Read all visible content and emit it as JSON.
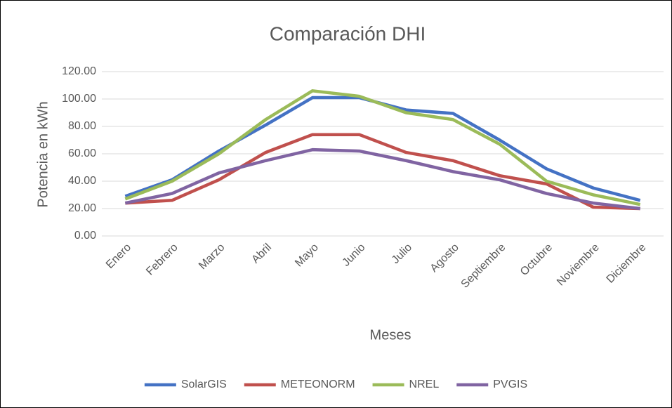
{
  "chart_data": {
    "type": "line",
    "title": "Comparación DHI",
    "xlabel": "Meses",
    "ylabel": "Potencia en kWh",
    "categories": [
      "Enero",
      "Febrero",
      "Marzo",
      "Abril",
      "Mayo",
      "Junio",
      "Julio",
      "Agosto",
      "Septiembre",
      "Octubre",
      "Noviembre",
      "Diciembre"
    ],
    "series": [
      {
        "name": "SolarGIS",
        "color": "#4472c4",
        "values": [
          29,
          41,
          62,
          81,
          101,
          101,
          92,
          89.5,
          70,
          49,
          35,
          26
        ]
      },
      {
        "name": "METEONORM",
        "color": "#c0504d",
        "values": [
          24,
          26,
          41,
          61,
          74,
          74,
          61,
          55,
          44,
          38,
          21,
          20
        ]
      },
      {
        "name": "NREL",
        "color": "#9bbb59",
        "values": [
          27,
          40,
          60,
          85,
          106,
          102,
          90,
          85,
          67,
          40,
          30,
          23
        ]
      },
      {
        "name": "PVGIS",
        "color": "#8064a2",
        "values": [
          24,
          31,
          46,
          55,
          63,
          62,
          55,
          47,
          41,
          31,
          24,
          20
        ]
      }
    ],
    "ylim": [
      0,
      120
    ],
    "yticks": [
      {
        "value": 0,
        "label": "0.00"
      },
      {
        "value": 20,
        "label": "20.00"
      },
      {
        "value": 40,
        "label": "40.00"
      },
      {
        "value": 60,
        "label": "60.00"
      },
      {
        "value": 80,
        "label": "80.00"
      },
      {
        "value": 100,
        "label": "100.00"
      },
      {
        "value": 120,
        "label": "120.00"
      }
    ],
    "grid": true,
    "legend": "bottom"
  }
}
